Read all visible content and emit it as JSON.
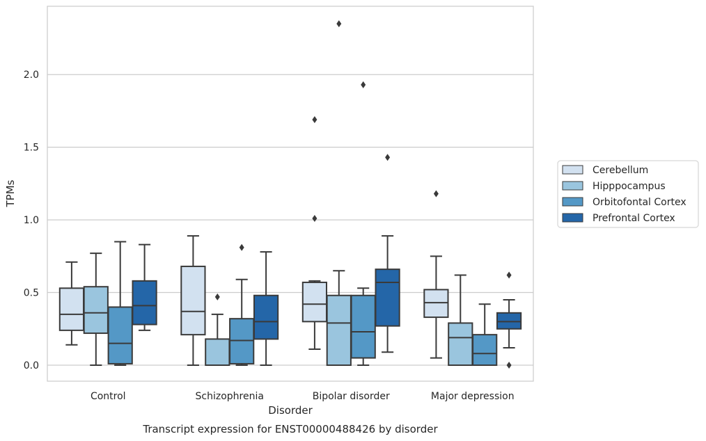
{
  "chart_data": {
    "type": "box",
    "caption": "Transcript expression for ENST00000488426 by disorder",
    "xlabel": "Disorder",
    "ylabel": "TPMs",
    "ylim": [
      -0.11,
      2.47
    ],
    "yticks": [
      0.0,
      0.5,
      1.0,
      1.5,
      2.0
    ],
    "ytick_labels": [
      "0.0",
      "0.5",
      "1.0",
      "1.5",
      "2.0"
    ],
    "grid": "horizontal",
    "legend_position": "right",
    "categories": [
      "Control",
      "Schizophrenia",
      "Bipolar disorder",
      "Major depression"
    ],
    "series": [
      {
        "name": "Cerebellum",
        "color": "#d2e1f0",
        "boxes": [
          {
            "whislo": 0.14,
            "q1": 0.24,
            "med": 0.35,
            "q3": 0.53,
            "whishi": 0.71,
            "fliers": []
          },
          {
            "whislo": 0.0,
            "q1": 0.21,
            "med": 0.37,
            "q3": 0.68,
            "whishi": 0.89,
            "fliers": []
          },
          {
            "whislo": 0.11,
            "q1": 0.3,
            "med": 0.42,
            "q3": 0.57,
            "whishi": 0.58,
            "fliers": [
              1.01,
              1.69
            ]
          },
          {
            "whislo": 0.05,
            "q1": 0.33,
            "med": 0.43,
            "q3": 0.52,
            "whishi": 0.75,
            "fliers": [
              1.18
            ]
          }
        ]
      },
      {
        "name": "Hipppocampus",
        "color": "#9ac5de",
        "boxes": [
          {
            "whislo": 0.0,
            "q1": 0.22,
            "med": 0.36,
            "q3": 0.54,
            "whishi": 0.77,
            "fliers": []
          },
          {
            "whislo": 0.0,
            "q1": 0.0,
            "med": 0.0,
            "q3": 0.18,
            "whishi": 0.35,
            "fliers": [
              0.47
            ]
          },
          {
            "whislo": 0.0,
            "q1": 0.0,
            "med": 0.29,
            "q3": 0.48,
            "whishi": 0.65,
            "fliers": [
              2.35
            ]
          },
          {
            "whislo": 0.0,
            "q1": 0.0,
            "med": 0.19,
            "q3": 0.29,
            "whishi": 0.62,
            "fliers": []
          }
        ]
      },
      {
        "name": "Orbitofontal Cortex",
        "color": "#5498c6",
        "boxes": [
          {
            "whislo": 0.0,
            "q1": 0.01,
            "med": 0.15,
            "q3": 0.4,
            "whishi": 0.85,
            "fliers": []
          },
          {
            "whislo": 0.0,
            "q1": 0.01,
            "med": 0.17,
            "q3": 0.32,
            "whishi": 0.59,
            "fliers": [
              0.81
            ]
          },
          {
            "whislo": 0.0,
            "q1": 0.05,
            "med": 0.23,
            "q3": 0.48,
            "whishi": 0.53,
            "fliers": [
              1.93
            ]
          },
          {
            "whislo": 0.0,
            "q1": 0.0,
            "med": 0.08,
            "q3": 0.21,
            "whishi": 0.42,
            "fliers": []
          }
        ]
      },
      {
        "name": "Prefrontal Cortex",
        "color": "#2466a8",
        "boxes": [
          {
            "whislo": 0.24,
            "q1": 0.28,
            "med": 0.41,
            "q3": 0.58,
            "whishi": 0.83,
            "fliers": []
          },
          {
            "whislo": 0.0,
            "q1": 0.18,
            "med": 0.3,
            "q3": 0.48,
            "whishi": 0.78,
            "fliers": []
          },
          {
            "whislo": 0.09,
            "q1": 0.27,
            "med": 0.57,
            "q3": 0.66,
            "whishi": 0.89,
            "fliers": [
              1.43
            ]
          },
          {
            "whislo": 0.12,
            "q1": 0.25,
            "med": 0.3,
            "q3": 0.36,
            "whishi": 0.45,
            "fliers": [
              0.62,
              0.0
            ]
          }
        ]
      }
    ]
  }
}
